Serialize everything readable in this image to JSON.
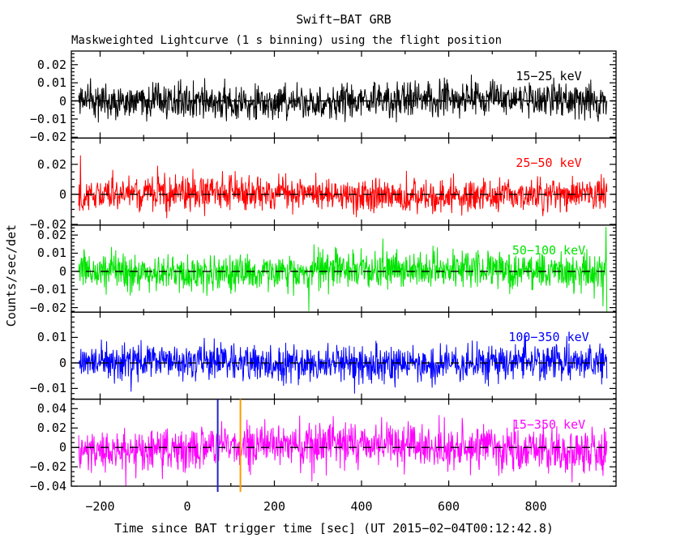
{
  "chart_data": {
    "type": "line",
    "title": "Swift−BAT GRB",
    "subtitle": "Maskweighted Lightcurve (1 s binning) using the flight position",
    "xlabel": "Time since BAT trigger time [sec] (UT 2015−02−04T00:12:42.8)",
    "ylabel": "Counts/sec/det",
    "grid": false,
    "x_axis": {
      "range": [
        -266,
        984
      ],
      "data_range": [
        -249,
        963
      ],
      "major_ticks": [
        {
          "v": -200,
          "label": "−200"
        },
        {
          "v": 0,
          "label": "0"
        },
        {
          "v": 200,
          "label": "200"
        },
        {
          "v": 400,
          "label": "400"
        },
        {
          "v": 600,
          "label": "600"
        },
        {
          "v": 800,
          "label": "800"
        }
      ],
      "minor_step": 100
    },
    "panels": [
      {
        "id": "15-25",
        "label": "15−25 keV",
        "color": "#000000",
        "ylim": [
          -0.0205,
          0.0275
        ],
        "y_major_step": 0.01,
        "y_minor_step": 0.002,
        "tick_labels": [
          {
            "v": 0.02,
            "label": "0.02"
          },
          {
            "v": 0.01,
            "label": "0.01"
          },
          {
            "v": 0,
            "label": "0"
          },
          {
            "v": -0.01,
            "label": "−0.01"
          },
          {
            "v": -0.02,
            "label": "−0.02"
          }
        ],
        "mean": 0,
        "noise_sigma": 0.0048,
        "seed": 11,
        "spikes": []
      },
      {
        "id": "25-50",
        "label": "25−50 keV",
        "color": "#ff0000",
        "ylim": [
          -0.0205,
          0.0375
        ],
        "y_major_step": 0.02,
        "y_minor_step": 0.005,
        "tick_labels": [
          {
            "v": 0.02,
            "label": "0.02"
          },
          {
            "v": 0,
            "label": "0"
          },
          {
            "v": -0.02,
            "label": "−0.02"
          }
        ],
        "mean": 0,
        "noise_sigma": 0.0055,
        "seed": 22,
        "spikes": [
          {
            "t": -245,
            "v": 0.026
          }
        ]
      },
      {
        "id": "50-100",
        "label": "50−100 keV",
        "color": "#00e400",
        "ylim": [
          -0.0225,
          0.0255
        ],
        "y_major_step": 0.01,
        "y_minor_step": 0.002,
        "tick_labels": [
          {
            "v": 0.02,
            "label": "0.02"
          },
          {
            "v": 0.01,
            "label": "0.01"
          },
          {
            "v": 0,
            "label": "0"
          },
          {
            "v": -0.01,
            "label": "−0.01"
          },
          {
            "v": -0.02,
            "label": "−0.02"
          }
        ],
        "mean": 0,
        "noise_sigma": 0.0052,
        "seed": 33,
        "spikes": [
          {
            "t": 961,
            "v": 0.0245
          },
          {
            "t": 963,
            "v": -0.0225
          }
        ]
      },
      {
        "id": "100-350",
        "label": "100−350 keV",
        "color": "#0000ff",
        "ylim": [
          -0.0142,
          0.0199
        ],
        "y_major_step": 0.01,
        "y_minor_step": 0.002,
        "tick_labels": [
          {
            "v": 0.01,
            "label": "0.01"
          },
          {
            "v": 0,
            "label": "0"
          },
          {
            "v": -0.01,
            "label": "−0.01"
          }
        ],
        "mean": 0,
        "noise_sigma": 0.0035,
        "seed": 44,
        "spikes": []
      },
      {
        "id": "15-350",
        "label": "15−350 keV",
        "color": "#ff00ff",
        "ylim": [
          -0.04,
          0.0498
        ],
        "y_major_step": 0.02,
        "y_minor_step": 0.005,
        "tick_labels": [
          {
            "v": 0.04,
            "label": "0.04"
          },
          {
            "v": 0.02,
            "label": "0.02"
          },
          {
            "v": 0,
            "label": "0"
          },
          {
            "v": -0.02,
            "label": "−0.02"
          },
          {
            "v": -0.04,
            "label": "−0.04"
          }
        ],
        "mean": 0,
        "noise_sigma": 0.011,
        "seed": 55,
        "spikes": [
          {
            "t": -141,
            "v": -0.0404
          }
        ]
      }
    ],
    "zero_line": {
      "color": "#000000",
      "dash": [
        10,
        8
      ]
    },
    "markers": [
      {
        "t": 70,
        "color": "#2222cc",
        "name": "marker-line-blue"
      },
      {
        "t": 122,
        "color": "#ff9900",
        "name": "marker-line-orange"
      }
    ]
  }
}
